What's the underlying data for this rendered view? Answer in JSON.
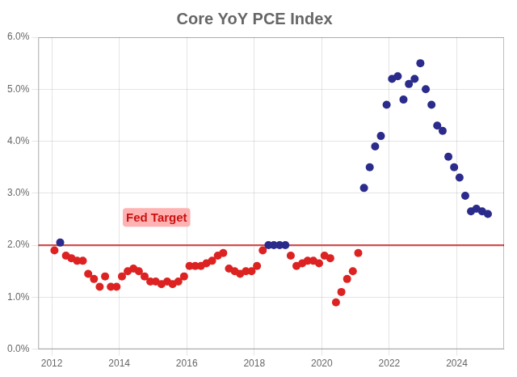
{
  "chart_data": {
    "type": "scatter",
    "title": "Core YoY PCE Index",
    "x": [
      2012.08,
      2012.25,
      2012.42,
      2012.58,
      2012.75,
      2012.92,
      2013.08,
      2013.25,
      2013.42,
      2013.58,
      2013.75,
      2013.92,
      2014.08,
      2014.25,
      2014.42,
      2014.58,
      2014.75,
      2014.92,
      2015.08,
      2015.25,
      2015.42,
      2015.58,
      2015.75,
      2015.92,
      2016.08,
      2016.25,
      2016.42,
      2016.58,
      2016.75,
      2016.92,
      2017.08,
      2017.25,
      2017.42,
      2017.58,
      2017.75,
      2017.92,
      2018.08,
      2018.25,
      2018.42,
      2018.58,
      2018.75,
      2018.92,
      2019.08,
      2019.25,
      2019.42,
      2019.58,
      2019.75,
      2019.92,
      2020.08,
      2020.25,
      2020.42,
      2020.58,
      2020.75,
      2020.92,
      2021.08,
      2021.25,
      2021.42,
      2021.58,
      2021.75,
      2021.92,
      2022.08,
      2022.25,
      2022.42,
      2022.58,
      2022.75,
      2022.92,
      2023.08,
      2023.25,
      2023.42,
      2023.58,
      2023.75,
      2023.92,
      2024.08,
      2024.25,
      2024.42,
      2024.58,
      2024.75,
      2024.92
    ],
    "values": [
      1.9,
      2.05,
      1.8,
      1.75,
      1.7,
      1.7,
      1.45,
      1.35,
      1.2,
      1.4,
      1.2,
      1.2,
      1.4,
      1.5,
      1.55,
      1.5,
      1.4,
      1.3,
      1.3,
      1.25,
      1.3,
      1.25,
      1.3,
      1.4,
      1.6,
      1.6,
      1.6,
      1.65,
      1.7,
      1.8,
      1.85,
      1.55,
      1.5,
      1.45,
      1.5,
      1.5,
      1.6,
      1.9,
      2.0,
      2.0,
      2.0,
      2.0,
      1.8,
      1.6,
      1.65,
      1.7,
      1.7,
      1.65,
      1.8,
      1.75,
      0.9,
      1.1,
      1.35,
      1.5,
      1.85,
      3.1,
      3.5,
      3.9,
      4.1,
      4.7,
      5.2,
      5.25,
      4.8,
      5.1,
      5.2,
      5.5,
      5.0,
      4.7,
      4.3,
      4.2,
      3.7,
      3.5,
      3.3,
      2.95,
      2.65,
      2.7,
      2.65,
      2.6
    ],
    "colors": [
      "#dd2222",
      "#2b2b8c",
      "#dd2222",
      "#dd2222",
      "#dd2222",
      "#dd2222",
      "#dd2222",
      "#dd2222",
      "#dd2222",
      "#dd2222",
      "#dd2222",
      "#dd2222",
      "#dd2222",
      "#dd2222",
      "#dd2222",
      "#dd2222",
      "#dd2222",
      "#dd2222",
      "#dd2222",
      "#dd2222",
      "#dd2222",
      "#dd2222",
      "#dd2222",
      "#dd2222",
      "#dd2222",
      "#dd2222",
      "#dd2222",
      "#dd2222",
      "#dd2222",
      "#dd2222",
      "#dd2222",
      "#dd2222",
      "#dd2222",
      "#dd2222",
      "#dd2222",
      "#dd2222",
      "#dd2222",
      "#dd2222",
      "#2b2b8c",
      "#2b2b8c",
      "#2b2b8c",
      "#2b2b8c",
      "#dd2222",
      "#dd2222",
      "#dd2222",
      "#dd2222",
      "#dd2222",
      "#dd2222",
      "#dd2222",
      "#dd2222",
      "#dd2222",
      "#dd2222",
      "#dd2222",
      "#dd2222",
      "#dd2222",
      "#2b2b8c",
      "#2b2b8c",
      "#2b2b8c",
      "#2b2b8c",
      "#2b2b8c",
      "#2b2b8c",
      "#2b2b8c",
      "#2b2b8c",
      "#2b2b8c",
      "#2b2b8c",
      "#2b2b8c",
      "#2b2b8c",
      "#2b2b8c",
      "#2b2b8c",
      "#2b2b8c",
      "#2b2b8c",
      "#2b2b8c",
      "#2b2b8c",
      "#2b2b8c",
      "#2b2b8c",
      "#2b2b8c",
      "#2b2b8c",
      "#2b2b8c"
    ],
    "xlim": [
      2011.6,
      2025.4
    ],
    "xticks": [
      2012,
      2014,
      2016,
      2018,
      2020,
      2022,
      2024
    ],
    "ylim": [
      0.0,
      6.0
    ],
    "yticks": [
      {
        "value": 0.0,
        "label": "0.0%"
      },
      {
        "value": 1.0,
        "label": "1.0%"
      },
      {
        "value": 2.0,
        "label": "2.0%"
      },
      {
        "value": 3.0,
        "label": "3.0%"
      },
      {
        "value": 4.0,
        "label": "4.0%"
      },
      {
        "value": 5.0,
        "label": "5.0%"
      },
      {
        "value": 6.0,
        "label": "6.0%"
      }
    ],
    "grid": true,
    "hlines": [
      {
        "y": 2.0,
        "color": "#d05050"
      }
    ],
    "annotations": [
      {
        "text": "Fed Target",
        "x": 2014.2,
        "y": 2.45,
        "color": "#cc1111",
        "background": "#ffaaaa"
      }
    ]
  }
}
